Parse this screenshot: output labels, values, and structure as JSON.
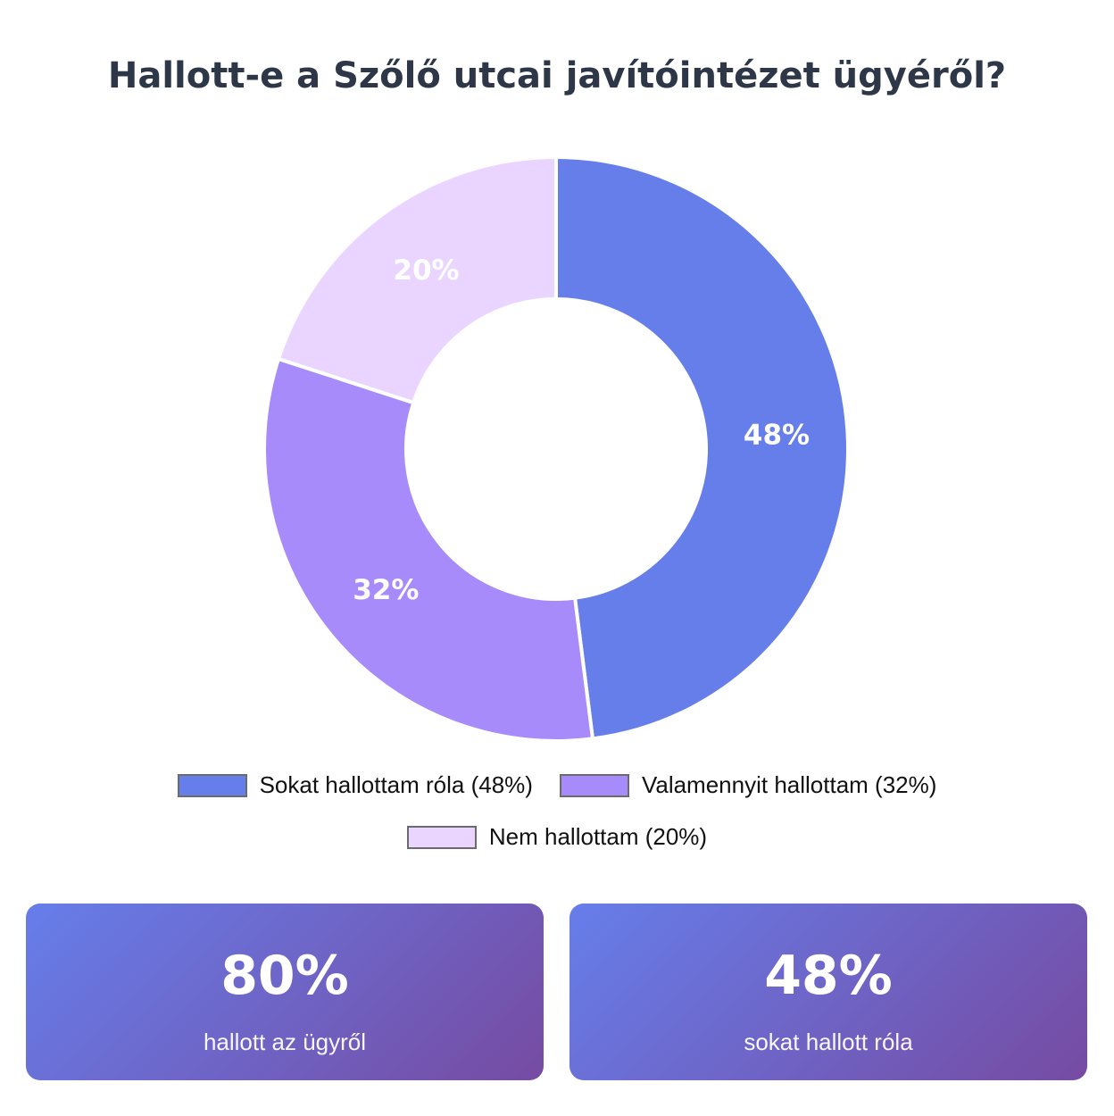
{
  "chart_data": {
    "type": "pie",
    "title": "Hallott-e a Szőlő utcai javítóintézet ügyéről?",
    "categories": [
      "Sokat hallottam róla",
      "Valamennyit hallottam",
      "Nem hallottam"
    ],
    "values": [
      48,
      32,
      20
    ],
    "unit": "%",
    "data_labels": [
      "48%",
      "32%",
      "20%"
    ],
    "legend_labels": [
      "Sokat hallottam róla (48%)",
      "Valamennyit hallottam (32%)",
      "Nem hallottam (20%)"
    ],
    "colors": [
      "#667eea",
      "#a78bfa",
      "#e9d5ff"
    ],
    "donut": true,
    "legend_position": "bottom"
  },
  "stats": [
    {
      "value": "80%",
      "label": "hallott az ügyről"
    },
    {
      "value": "48%",
      "label": "sokat hallott róla"
    }
  ],
  "theme": {
    "card_gradient_start": "#667eea",
    "card_gradient_end": "#764ba2"
  }
}
